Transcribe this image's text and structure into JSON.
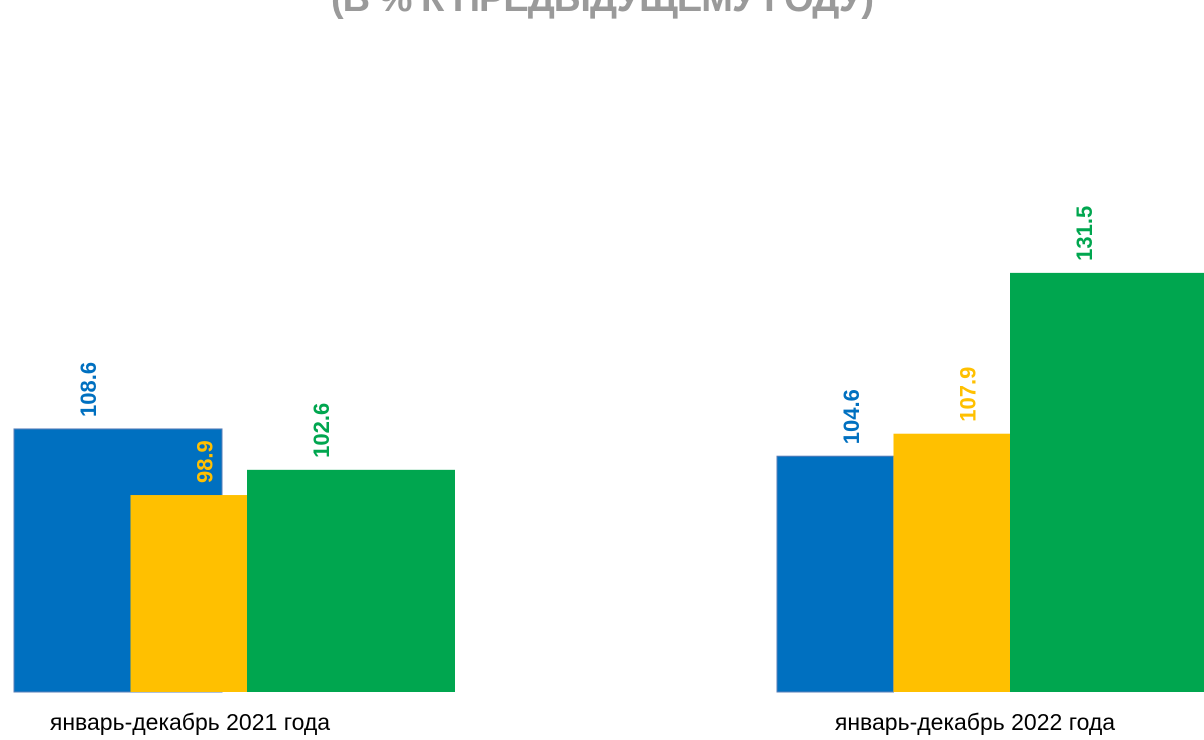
{
  "chart_data": {
    "type": "bar",
    "title": "(В % К ПРЕДЫДУЩЕМУ ГОДУ)",
    "categories": [
      "январь-декабрь 2021 года",
      "январь-декабрь 2022 года"
    ],
    "series": [
      {
        "color": "#0070c0",
        "values": [
          108.6,
          104.6
        ]
      },
      {
        "color": "#ffc000",
        "values": [
          98.9,
          107.9
        ]
      },
      {
        "color": "#00a64f",
        "values": [
          102.6,
          131.5
        ]
      }
    ],
    "ylim": [
      70,
      139
    ],
    "grid": false,
    "legend": "none"
  }
}
